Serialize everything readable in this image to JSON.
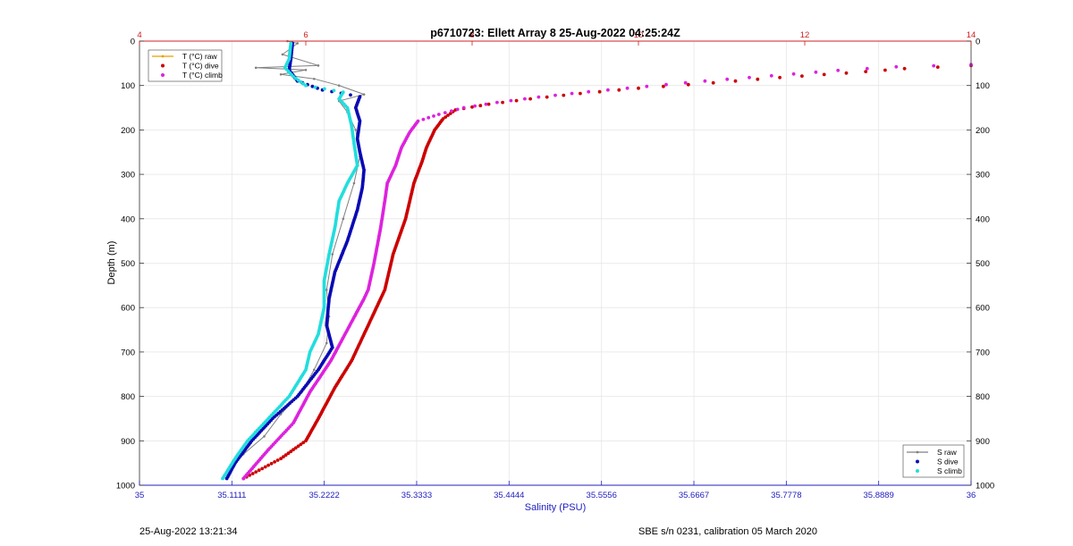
{
  "footer": {
    "timestamp": "25-Aug-2022 13:21:34",
    "calibration": "SBE s/n 0231, calibration 05 March 2020"
  },
  "chart_data": {
    "type": "line",
    "title": "p6710723: Ellett Array 8 25-Aug-2022 04:25:24Z",
    "xlabel": "Salinity (PSU)",
    "ylabel": "Depth (m)",
    "x_bottom": {
      "range": [
        35,
        36
      ],
      "ticks": [
        "35",
        "35.1111",
        "35.2222",
        "35.3333",
        "35.4444",
        "35.5556",
        "35.6667",
        "35.7778",
        "35.8889",
        "36"
      ],
      "color": "#2020c0"
    },
    "x_top": {
      "range": [
        4,
        14
      ],
      "ticks": [
        "4",
        "6",
        "8",
        "10",
        "12",
        "14"
      ],
      "color": "#d02020"
    },
    "y": {
      "range": [
        0,
        1000
      ],
      "reversed": true,
      "ticks": [
        "0",
        "100",
        "200",
        "300",
        "400",
        "500",
        "600",
        "700",
        "800",
        "900",
        "1000"
      ]
    },
    "grid": true,
    "legend_temperature": {
      "placement": "top-left",
      "entries": [
        {
          "label": "T (°C) raw",
          "color": "#e8a000",
          "marker": "line"
        },
        {
          "label": "T (°C) dive",
          "color": "#cc0000",
          "marker": "dot"
        },
        {
          "label": "T (°C) climb",
          "color": "#dd22dd",
          "marker": "dot"
        }
      ]
    },
    "legend_salinity": {
      "placement": "bottom-right",
      "entries": [
        {
          "label": "S raw",
          "color": "#808080",
          "marker": "line"
        },
        {
          "label": "S dive",
          "color": "#0a0ab4",
          "marker": "dot"
        },
        {
          "label": "S climb",
          "color": "#22dddd",
          "marker": "dot"
        }
      ]
    },
    "series": [
      {
        "name": "T (°C) dive",
        "axis": "top",
        "color": "#cc0000",
        "points": [
          [
            14.0,
            55
          ],
          [
            13.2,
            62
          ],
          [
            12.5,
            72
          ],
          [
            11.7,
            82
          ],
          [
            10.9,
            94
          ],
          [
            10.0,
            106
          ],
          [
            9.3,
            118
          ],
          [
            8.7,
            130
          ],
          [
            8.2,
            142
          ],
          [
            7.8,
            155
          ],
          [
            7.65,
            175
          ],
          [
            7.55,
            200
          ],
          [
            7.45,
            240
          ],
          [
            7.4,
            270
          ],
          [
            7.3,
            320
          ],
          [
            7.2,
            400
          ],
          [
            7.05,
            480
          ],
          [
            6.95,
            560
          ],
          [
            6.85,
            600
          ],
          [
            6.65,
            680
          ],
          [
            6.55,
            720
          ],
          [
            6.35,
            780
          ],
          [
            6.15,
            850
          ],
          [
            6.0,
            900
          ],
          [
            5.7,
            940
          ],
          [
            5.25,
            985
          ]
        ]
      },
      {
        "name": "T (°C) climb",
        "axis": "top",
        "color": "#dd22dd",
        "points": [
          [
            14.0,
            53
          ],
          [
            13.1,
            58
          ],
          [
            12.4,
            66
          ],
          [
            11.6,
            78
          ],
          [
            10.8,
            90
          ],
          [
            10.1,
            102
          ],
          [
            9.4,
            114
          ],
          [
            8.8,
            126
          ],
          [
            8.3,
            138
          ],
          [
            7.9,
            150
          ],
          [
            7.6,
            165
          ],
          [
            7.35,
            180
          ],
          [
            7.25,
            205
          ],
          [
            7.15,
            240
          ],
          [
            7.08,
            280
          ],
          [
            6.98,
            320
          ],
          [
            6.95,
            360
          ],
          [
            6.9,
            420
          ],
          [
            6.82,
            500
          ],
          [
            6.75,
            560
          ],
          [
            6.7,
            580
          ],
          [
            6.5,
            650
          ],
          [
            6.3,
            720
          ],
          [
            6.05,
            790
          ],
          [
            5.85,
            860
          ],
          [
            5.55,
            920
          ],
          [
            5.25,
            985
          ]
        ]
      },
      {
        "name": "S dive",
        "axis": "bottom",
        "color": "#0a0ab4",
        "points": [
          [
            35.184,
            5
          ],
          [
            35.182,
            40
          ],
          [
            35.18,
            65
          ],
          [
            35.19,
            90
          ],
          [
            35.22,
            110
          ],
          [
            35.265,
            125
          ],
          [
            35.26,
            150
          ],
          [
            35.265,
            180
          ],
          [
            35.262,
            220
          ],
          [
            35.265,
            250
          ],
          [
            35.27,
            290
          ],
          [
            35.268,
            330
          ],
          [
            35.262,
            380
          ],
          [
            35.25,
            450
          ],
          [
            35.235,
            520
          ],
          [
            35.228,
            580
          ],
          [
            35.225,
            640
          ],
          [
            35.232,
            690
          ],
          [
            35.215,
            740
          ],
          [
            35.19,
            800
          ],
          [
            35.16,
            850
          ],
          [
            35.135,
            900
          ],
          [
            35.115,
            950
          ],
          [
            35.105,
            985
          ]
        ]
      },
      {
        "name": "S climb",
        "axis": "bottom",
        "color": "#22dddd",
        "points": [
          [
            35.182,
            5
          ],
          [
            35.18,
            40
          ],
          [
            35.175,
            60
          ],
          [
            35.185,
            80
          ],
          [
            35.2,
            100
          ],
          [
            35.245,
            115
          ],
          [
            35.24,
            130
          ],
          [
            35.25,
            150
          ],
          [
            35.255,
            190
          ],
          [
            35.258,
            230
          ],
          [
            35.262,
            280
          ],
          [
            35.25,
            320
          ],
          [
            35.24,
            360
          ],
          [
            35.235,
            420
          ],
          [
            35.228,
            480
          ],
          [
            35.222,
            540
          ],
          [
            35.222,
            600
          ],
          [
            35.215,
            660
          ],
          [
            35.205,
            700
          ],
          [
            35.2,
            740
          ],
          [
            35.18,
            800
          ],
          [
            35.155,
            850
          ],
          [
            35.13,
            900
          ],
          [
            35.115,
            940
          ],
          [
            35.1,
            985
          ]
        ]
      },
      {
        "name": "S raw",
        "axis": "bottom",
        "color": "#808080",
        "points": [
          [
            35.178,
            0
          ],
          [
            35.19,
            5
          ],
          [
            35.172,
            30
          ],
          [
            35.215,
            55
          ],
          [
            35.14,
            60
          ],
          [
            35.2,
            65
          ],
          [
            35.17,
            75
          ],
          [
            35.21,
            85
          ],
          [
            35.24,
            100
          ],
          [
            35.27,
            120
          ],
          [
            35.24,
            135
          ],
          [
            35.25,
            160
          ],
          [
            35.26,
            200
          ],
          [
            35.265,
            260
          ],
          [
            35.258,
            320
          ],
          [
            35.245,
            400
          ],
          [
            35.232,
            480
          ],
          [
            35.225,
            560
          ],
          [
            35.228,
            620
          ],
          [
            35.225,
            680
          ],
          [
            35.21,
            740
          ],
          [
            35.195,
            790
          ],
          [
            35.17,
            840
          ],
          [
            35.15,
            890
          ],
          [
            35.125,
            930
          ],
          [
            35.11,
            960
          ],
          [
            35.1,
            985
          ]
        ]
      }
    ]
  }
}
